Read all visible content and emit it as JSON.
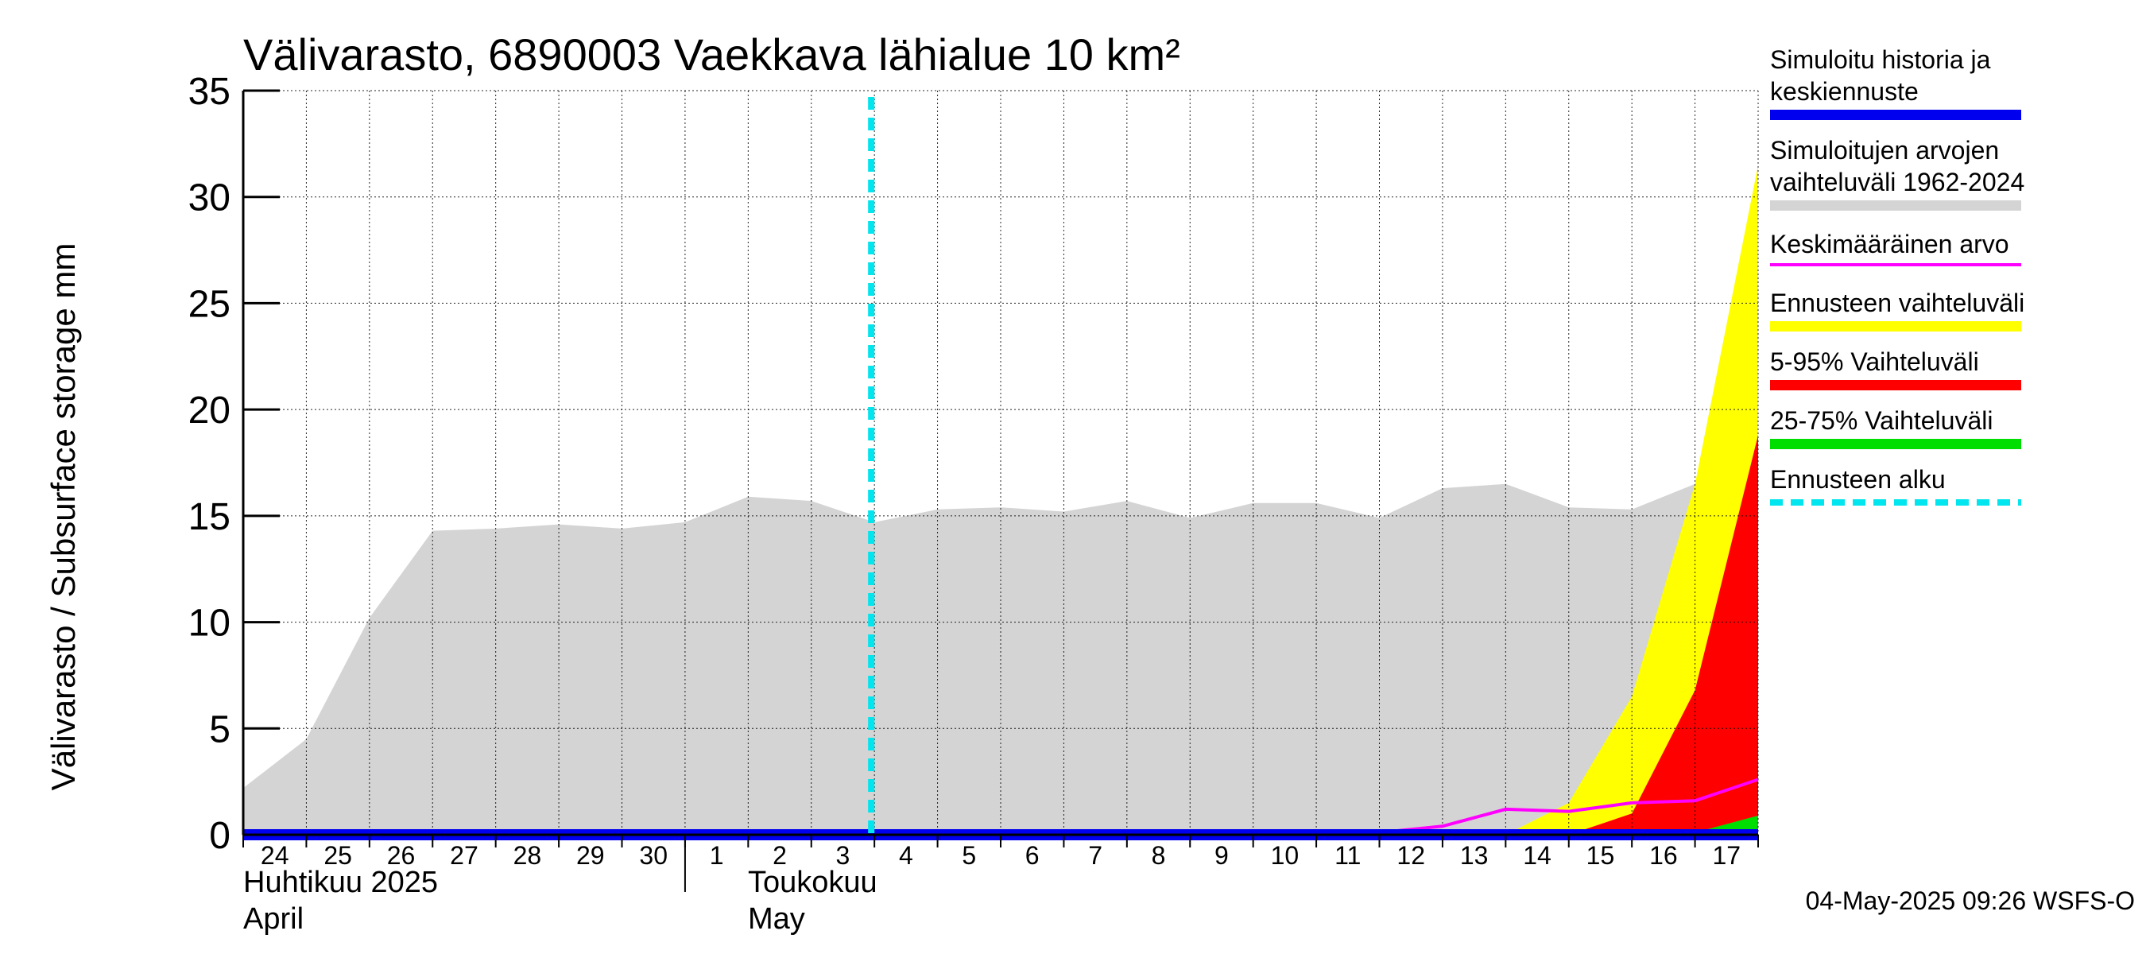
{
  "chart_data": {
    "type": "area",
    "title": "Välivarasto, 6890003 Vaekkava lähialue 10 km²",
    "ylabel": "Välivarasto / Subsurface storage  mm",
    "ylim": [
      0,
      35
    ],
    "yticks": [
      0,
      5,
      10,
      15,
      20,
      25,
      30,
      35
    ],
    "x_dates": [
      "2025-04-24",
      "2025-04-25",
      "2025-04-26",
      "2025-04-27",
      "2025-04-28",
      "2025-04-29",
      "2025-04-30",
      "2025-05-01",
      "2025-05-02",
      "2025-05-03",
      "2025-05-04",
      "2025-05-05",
      "2025-05-06",
      "2025-05-07",
      "2025-05-08",
      "2025-05-09",
      "2025-05-10",
      "2025-05-11",
      "2025-05-12",
      "2025-05-13",
      "2025-05-14",
      "2025-05-15",
      "2025-05-16",
      "2025-05-17",
      "2025-05-18"
    ],
    "day_labels": [
      "24",
      "25",
      "26",
      "27",
      "28",
      "29",
      "30",
      "1",
      "2",
      "3",
      "4",
      "5",
      "6",
      "7",
      "8",
      "9",
      "10",
      "11",
      "12",
      "13",
      "14",
      "15",
      "16",
      "17"
    ],
    "months": [
      {
        "fi": "Huhtikuu  2025",
        "en": "April"
      },
      {
        "fi": "Toukokuu",
        "en": "May"
      }
    ],
    "forecast_start": "2025-05-04",
    "grid": true,
    "series": [
      {
        "name": "Simuloitujen arvojen vaihteluväli 1962-2024",
        "kind": "band",
        "color": "#d4d4d4",
        "lower": [
          0,
          0,
          0,
          0,
          0,
          0,
          0,
          0,
          0,
          0,
          0,
          0,
          0,
          0,
          0,
          0,
          0,
          0,
          0,
          0,
          0,
          0,
          0,
          0,
          0
        ],
        "upper": [
          2.2,
          4.5,
          10.2,
          14.3,
          14.4,
          14.6,
          14.4,
          14.7,
          15.9,
          15.7,
          14.7,
          15.3,
          15.4,
          15.2,
          15.7,
          14.9,
          15.6,
          15.6,
          14.9,
          16.3,
          16.5,
          15.4,
          15.3,
          16.5,
          16.3
        ]
      },
      {
        "name": "Ennusteen vaihteluväli",
        "kind": "band",
        "color": "#ffff00",
        "lower": [
          0,
          0,
          0,
          0,
          0,
          0,
          0,
          0,
          0,
          0,
          0,
          0,
          0,
          0,
          0,
          0,
          0,
          0,
          0,
          0,
          0,
          0,
          0,
          0,
          0
        ],
        "upper": [
          null,
          null,
          null,
          null,
          null,
          null,
          null,
          null,
          null,
          null,
          0,
          0,
          0,
          0,
          0,
          0,
          0,
          0,
          0,
          0,
          0,
          1.5,
          6.5,
          16.5,
          31.5
        ]
      },
      {
        "name": "5-95% Vaihteluväli",
        "kind": "band",
        "color": "#ff0000",
        "lower": [
          0,
          0,
          0,
          0,
          0,
          0,
          0,
          0,
          0,
          0,
          0,
          0,
          0,
          0,
          0,
          0,
          0,
          0,
          0,
          0,
          0,
          0,
          0,
          0,
          0
        ],
        "upper": [
          null,
          null,
          null,
          null,
          null,
          null,
          null,
          null,
          null,
          null,
          0,
          0,
          0,
          0,
          0,
          0,
          0,
          0,
          0,
          0,
          0,
          0,
          1.0,
          6.8,
          18.8
        ]
      },
      {
        "name": "25-75% Vaihteluväli",
        "kind": "band",
        "color": "#00dd00",
        "lower": [
          0,
          0,
          0,
          0,
          0,
          0,
          0,
          0,
          0,
          0,
          0,
          0,
          0,
          0,
          0,
          0,
          0,
          0,
          0,
          0,
          0,
          0,
          0,
          0,
          0
        ],
        "upper": [
          null,
          null,
          null,
          null,
          null,
          null,
          null,
          null,
          null,
          null,
          0,
          0,
          0,
          0,
          0,
          0,
          0,
          0,
          0,
          0,
          0,
          0,
          0,
          0.1,
          0.9
        ]
      },
      {
        "name": "Keskimääräinen arvo",
        "kind": "line",
        "color": "#ff00ff",
        "values": [
          0.1,
          0.1,
          0.1,
          0.1,
          0.1,
          0.1,
          0.1,
          0.1,
          0.1,
          0.1,
          0.1,
          0.1,
          0.1,
          0.1,
          0.1,
          0.1,
          0.1,
          0.1,
          0.1,
          0.4,
          1.2,
          1.1,
          1.5,
          1.6,
          2.6
        ]
      },
      {
        "name": "Simuloitu historia ja keskiennuste",
        "kind": "line",
        "color": "#0000ee",
        "values": [
          0,
          0,
          0,
          0,
          0,
          0,
          0,
          0,
          0,
          0,
          0,
          0,
          0,
          0,
          0,
          0,
          0,
          0,
          0,
          0,
          0,
          0,
          0,
          0,
          0
        ]
      }
    ]
  },
  "legend": [
    {
      "label": "Simuloitu historia ja keskiennuste",
      "color": "#0000ee",
      "style": "solid"
    },
    {
      "label": "Simuloitujen arvojen vaihteluväli 1962-2024",
      "color": "#d4d4d4",
      "style": "solid"
    },
    {
      "label": "Keskimääräinen arvo",
      "color": "#ff00ff",
      "style": "thin"
    },
    {
      "label": "Ennusteen vaihteluväli",
      "color": "#ffff00",
      "style": "solid"
    },
    {
      "label": "5-95% Vaihteluväli",
      "color": "#ff0000",
      "style": "solid"
    },
    {
      "label": "25-75% Vaihteluväli",
      "color": "#00dd00",
      "style": "solid"
    },
    {
      "label": "Ennusteen alku",
      "color": "#00e5ee",
      "style": "dashed"
    }
  ],
  "timestamp": "04-May-2025 09:26 WSFS-O"
}
